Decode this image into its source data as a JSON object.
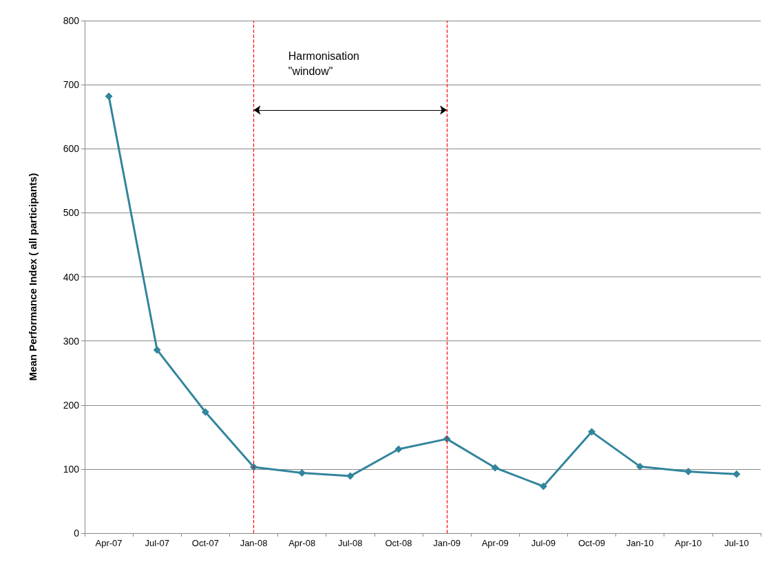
{
  "chart_data": {
    "type": "line",
    "ylabel": "Mean Performance Index ( all participants)",
    "categories": [
      "Apr-07",
      "Jul-07",
      "Oct-07",
      "Jan-08",
      "Apr-08",
      "Jul-08",
      "Oct-08",
      "Jan-09",
      "Apr-09",
      "Jul-09",
      "Oct-09",
      "Jan-10",
      "Apr-10",
      "Jul-10"
    ],
    "series": [
      {
        "color": "#31859c",
        "values": [
          682,
          286,
          189,
          103,
          94,
          89,
          131,
          147,
          102,
          73,
          158,
          104,
          96,
          92
        ]
      }
    ],
    "ylim": [
      0,
      800
    ],
    "yticks": [
      0,
      100,
      200,
      300,
      400,
      500,
      600,
      700,
      800
    ],
    "grid": "y",
    "marker": "diamond",
    "line_style": "solid",
    "ref_lines": [
      {
        "axis": "x",
        "value": "Jan-08",
        "color": "#ff0000",
        "line_style": "dashed"
      },
      {
        "axis": "x",
        "value": "Jan-09",
        "color": "#ff0000",
        "line_style": "dashed"
      }
    ],
    "annotations": [
      "Harmonisation\n\"window\""
    ]
  }
}
